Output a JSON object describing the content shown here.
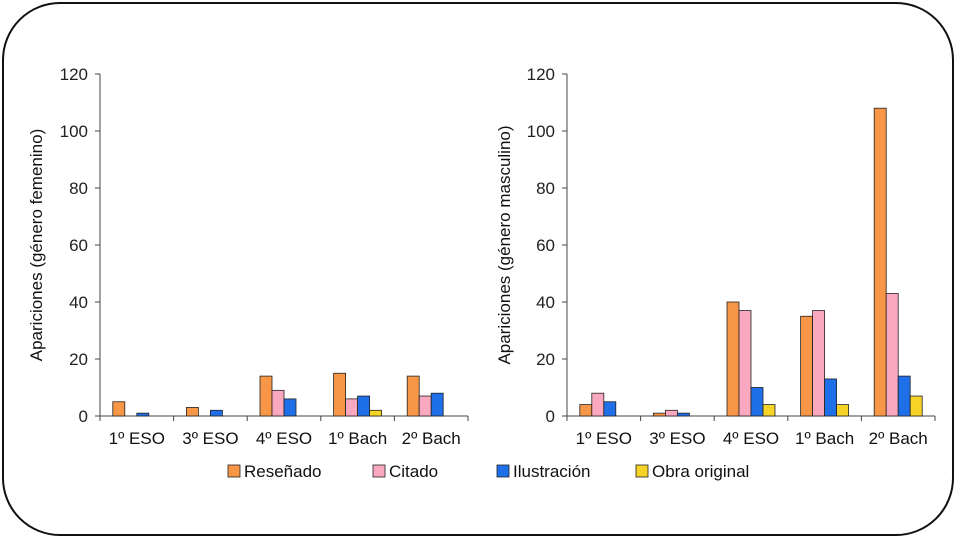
{
  "chart_data": [
    {
      "type": "bar",
      "ylabel": "Apariciones (género femenino)",
      "ylim": [
        0,
        120
      ],
      "yticks": [
        0,
        20,
        40,
        60,
        80,
        100,
        120
      ],
      "categories": [
        "1º ESO",
        "3º ESO",
        "4º ESO",
        "1º Bach",
        "2º Bach"
      ],
      "series": [
        {
          "name": "Reseñado",
          "values": [
            5,
            3,
            14,
            15,
            14
          ]
        },
        {
          "name": "Citado",
          "values": [
            0,
            0,
            9,
            6,
            7
          ]
        },
        {
          "name": "Ilustración",
          "values": [
            1,
            2,
            6,
            7,
            8
          ]
        },
        {
          "name": "Obra original",
          "values": [
            0,
            0,
            0,
            2,
            0
          ]
        }
      ]
    },
    {
      "type": "bar",
      "ylabel": "Apariciones (género masculino)",
      "ylim": [
        0,
        120
      ],
      "yticks": [
        0,
        20,
        40,
        60,
        80,
        100,
        120
      ],
      "categories": [
        "1º ESO",
        "3º ESO",
        "4º ESO",
        "1º Bach",
        "2º Bach"
      ],
      "series": [
        {
          "name": "Reseñado",
          "values": [
            4,
            1,
            40,
            35,
            108
          ]
        },
        {
          "name": "Citado",
          "values": [
            8,
            2,
            37,
            37,
            43
          ]
        },
        {
          "name": "Ilustración",
          "values": [
            5,
            1,
            10,
            13,
            14
          ]
        },
        {
          "name": "Obra original",
          "values": [
            0,
            0,
            4,
            4,
            7
          ]
        }
      ]
    }
  ],
  "legend": [
    {
      "label": "Reseñado",
      "color": "#f79646"
    },
    {
      "label": "Citado",
      "color": "#f9a8c0"
    },
    {
      "label": "Ilustración",
      "color": "#1f6fe8"
    },
    {
      "label": "Obra original",
      "color": "#f5d327"
    }
  ]
}
